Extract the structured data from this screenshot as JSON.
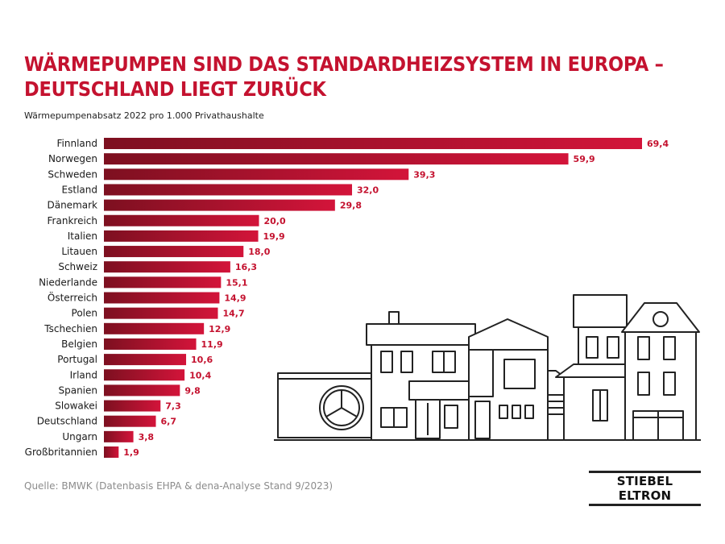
{
  "header": {
    "title": "WÄRMEPUMPEN SIND DAS STANDARDHEIZSYSTEM IN EUROPA – DEUTSCHLAND LIEGT ZURÜCK",
    "subtitle": "Wärmepumpenabsatz 2022 pro 1.000 Privathaushalte"
  },
  "footer": {
    "source": "Quelle: BMWK (Datenbasis EHPA & dena-Analyse Stand 9/2023)",
    "logo_text": "STIEBEL ELTRON"
  },
  "colors": {
    "bar_dark": "#7d1020",
    "bar_light": "#d3143a",
    "accent": "#c4122f"
  },
  "illustration": {
    "icon": "houses-with-heat-pump-illustration"
  },
  "chart_data": {
    "type": "bar",
    "orientation": "horizontal",
    "title": "WÄRMEPUMPEN SIND DAS STANDARDHEIZSYSTEM IN EUROPA – DEUTSCHLAND LIEGT ZURÜCK",
    "subtitle": "Wärmepumpenabsatz 2022 pro 1.000 Privathaushalte",
    "categories": [
      "Finnland",
      "Norwegen",
      "Schweden",
      "Estland",
      "Dänemark",
      "Frankreich",
      "Italien",
      "Litauen",
      "Schweiz",
      "Niederlande",
      "Österreich",
      "Polen",
      "Tschechien",
      "Belgien",
      "Portugal",
      "Irland",
      "Spanien",
      "Slowakei",
      "Deutschland",
      "Ungarn",
      "Großbritannien"
    ],
    "values": [
      69.4,
      59.9,
      39.3,
      32.0,
      29.8,
      20.0,
      19.9,
      18.0,
      16.3,
      15.1,
      14.9,
      14.7,
      12.9,
      11.9,
      10.6,
      10.4,
      9.8,
      7.3,
      6.7,
      3.8,
      1.9
    ],
    "value_labels": [
      "69,4",
      "59,9",
      "39,3",
      "32,0",
      "29,8",
      "20,0",
      "19,9",
      "18,0",
      "16,3",
      "15,1",
      "14,9",
      "14,7",
      "12,9",
      "11,9",
      "10,6",
      "10,4",
      "9,8",
      "7,3",
      "6,7",
      "3,8",
      "1,9"
    ],
    "xlim": [
      0,
      69.4
    ],
    "grid": false,
    "legend": "none"
  }
}
